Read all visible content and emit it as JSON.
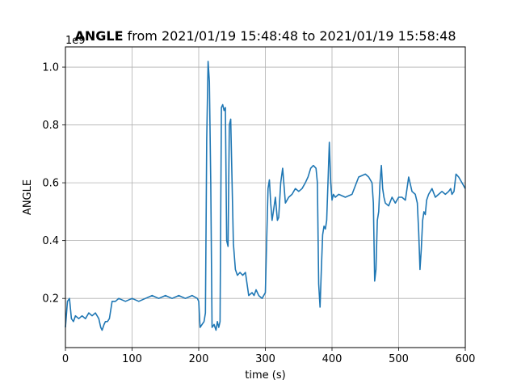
{
  "chart_data": {
    "type": "line",
    "title_bold": "ANGLE",
    "title_rest": " from 2021/01/19 15:48:48 to 2021/01/19 15:58:48",
    "xlabel": "time (s)",
    "ylabel": "ANGLE",
    "y_offset_label": "1e9",
    "xlim": [
      0,
      600
    ],
    "ylim": [
      0.03,
      1.07
    ],
    "xticks": [
      0,
      100,
      200,
      300,
      400,
      500,
      600
    ],
    "xtick_labels": [
      "0",
      "100",
      "200",
      "300",
      "400",
      "500",
      "600"
    ],
    "yticks": [
      0.2,
      0.4,
      0.6,
      0.8,
      1.0
    ],
    "ytick_labels": [
      "0.2",
      "0.4",
      "0.6",
      "0.8",
      "1.0"
    ],
    "grid": true,
    "line_color": "#1f77b4",
    "series": [
      {
        "x": [
          0,
          3,
          6,
          9,
          12,
          15,
          20,
          25,
          30,
          35,
          40,
          45,
          50,
          53,
          55,
          58,
          60,
          63,
          66,
          70,
          75,
          80,
          90,
          100,
          110,
          120,
          130,
          140,
          150,
          160,
          170,
          180,
          190,
          198,
          200,
          202,
          205,
          208,
          210,
          212,
          214,
          216,
          218,
          220,
          223,
          226,
          228,
          230,
          232,
          234,
          236,
          238,
          240,
          242,
          244,
          246,
          248,
          250,
          252,
          255,
          258,
          262,
          266,
          270,
          275,
          280,
          283,
          286,
          290,
          295,
          300,
          302,
          304,
          306,
          308,
          310,
          312,
          315,
          318,
          320,
          323,
          326,
          330,
          335,
          340,
          345,
          350,
          355,
          360,
          364,
          368,
          372,
          376,
          378,
          380,
          382,
          384,
          386,
          388,
          390,
          392,
          394,
          396,
          398,
          400,
          402,
          405,
          410,
          420,
          430,
          440,
          450,
          455,
          460,
          462,
          464,
          466,
          468,
          470,
          472,
          474,
          476,
          478,
          480,
          485,
          490,
          495,
          500,
          505,
          510,
          515,
          520,
          525,
          528,
          530,
          532,
          534,
          536,
          538,
          540,
          542,
          545,
          550,
          555,
          560,
          565,
          570,
          575,
          578,
          580,
          583,
          586,
          590,
          595,
          600
        ],
        "y": [
          0.1,
          0.19,
          0.2,
          0.13,
          0.12,
          0.14,
          0.13,
          0.14,
          0.13,
          0.15,
          0.14,
          0.15,
          0.13,
          0.1,
          0.09,
          0.11,
          0.12,
          0.12,
          0.13,
          0.19,
          0.19,
          0.2,
          0.19,
          0.2,
          0.19,
          0.2,
          0.21,
          0.2,
          0.21,
          0.2,
          0.21,
          0.2,
          0.21,
          0.2,
          0.19,
          0.1,
          0.11,
          0.12,
          0.15,
          0.75,
          1.02,
          0.95,
          0.6,
          0.1,
          0.11,
          0.09,
          0.12,
          0.1,
          0.12,
          0.86,
          0.87,
          0.85,
          0.86,
          0.4,
          0.38,
          0.8,
          0.82,
          0.6,
          0.39,
          0.3,
          0.28,
          0.29,
          0.28,
          0.29,
          0.21,
          0.22,
          0.21,
          0.23,
          0.21,
          0.2,
          0.22,
          0.4,
          0.58,
          0.61,
          0.53,
          0.47,
          0.5,
          0.55,
          0.47,
          0.48,
          0.6,
          0.65,
          0.53,
          0.55,
          0.56,
          0.58,
          0.57,
          0.58,
          0.6,
          0.62,
          0.65,
          0.66,
          0.65,
          0.6,
          0.25,
          0.17,
          0.3,
          0.42,
          0.45,
          0.44,
          0.47,
          0.6,
          0.74,
          0.6,
          0.54,
          0.56,
          0.55,
          0.56,
          0.55,
          0.56,
          0.62,
          0.63,
          0.62,
          0.6,
          0.53,
          0.26,
          0.3,
          0.47,
          0.5,
          0.6,
          0.66,
          0.58,
          0.55,
          0.53,
          0.52,
          0.55,
          0.53,
          0.55,
          0.55,
          0.54,
          0.62,
          0.57,
          0.56,
          0.53,
          0.43,
          0.3,
          0.37,
          0.47,
          0.5,
          0.49,
          0.54,
          0.56,
          0.58,
          0.55,
          0.56,
          0.57,
          0.56,
          0.57,
          0.58,
          0.56,
          0.57,
          0.63,
          0.62,
          0.6,
          0.58
        ]
      }
    ]
  }
}
